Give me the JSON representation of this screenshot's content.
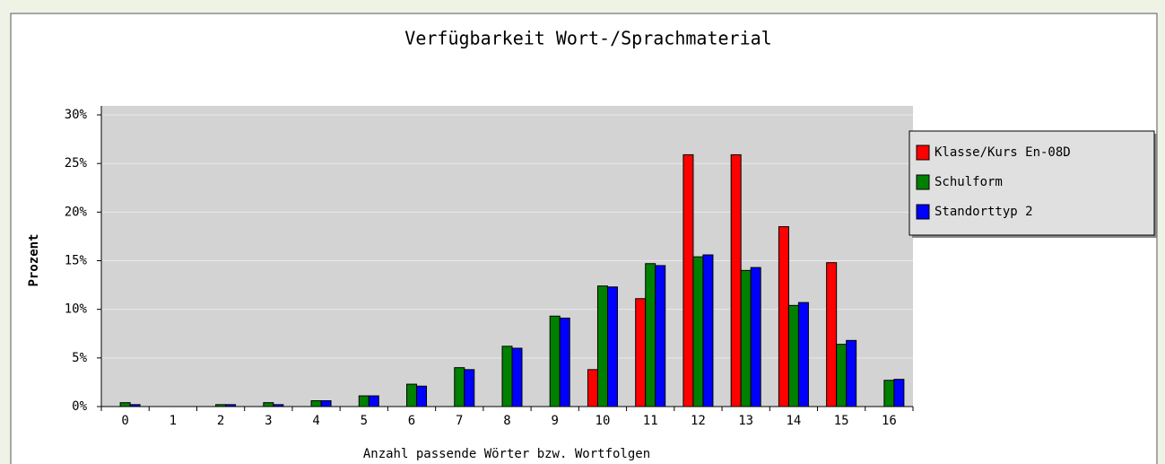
{
  "chart_data": {
    "type": "bar",
    "title": "Verfügbarkeit Wort-/Sprachmaterial",
    "x_label": "Anzahl passende Wörter bzw. Wortfolgen",
    "y_label": "Prozent",
    "categories": [
      "0",
      "1",
      "2",
      "3",
      "4",
      "5",
      "6",
      "7",
      "8",
      "9",
      "10",
      "11",
      "12",
      "13",
      "14",
      "15",
      "16"
    ],
    "series": [
      {
        "name": "Klasse/Kurs En-08D",
        "color": "#ff0000",
        "values": [
          0,
          0,
          0,
          0,
          0,
          0,
          0,
          0,
          0,
          0,
          3.8,
          11.1,
          25.9,
          25.9,
          18.5,
          14.8,
          0
        ]
      },
      {
        "name": "Schulform",
        "color": "#008000",
        "values": [
          0.4,
          0,
          0.2,
          0.4,
          0.6,
          1.1,
          2.3,
          4.0,
          6.2,
          9.3,
          12.4,
          14.7,
          15.4,
          14.0,
          10.4,
          6.4,
          2.7
        ]
      },
      {
        "name": "Standorttyp 2",
        "color": "#0000ff",
        "values": [
          0.2,
          0,
          0.2,
          0.2,
          0.6,
          1.1,
          2.1,
          3.8,
          6.0,
          9.1,
          12.3,
          14.5,
          15.6,
          14.3,
          10.7,
          6.8,
          2.8
        ]
      }
    ],
    "ylim": [
      0,
      30
    ],
    "yticks": [
      {
        "value": 0,
        "label": "0%"
      },
      {
        "value": 5,
        "label": "5%"
      },
      {
        "value": 10,
        "label": "10%"
      },
      {
        "value": 15,
        "label": "15%"
      },
      {
        "value": 20,
        "label": "20%"
      },
      {
        "value": 25,
        "label": "25%"
      },
      {
        "value": 30,
        "label": "30%"
      }
    ],
    "grid": true,
    "legend": "right"
  }
}
